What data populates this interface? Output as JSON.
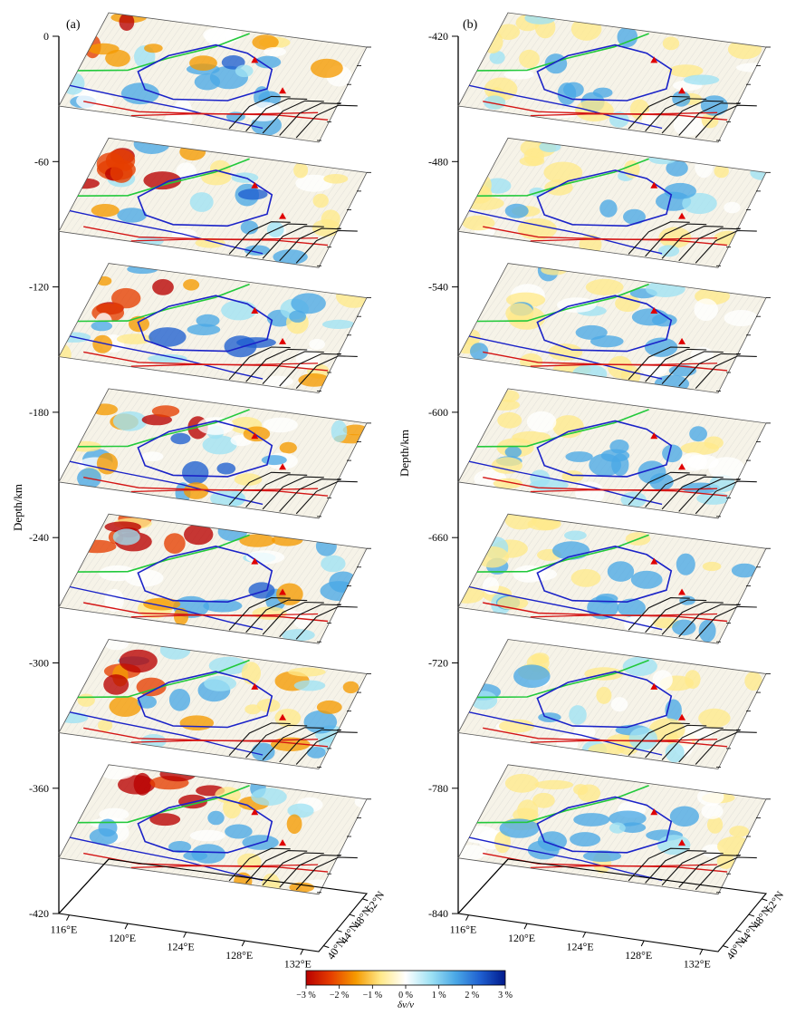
{
  "panels": [
    {
      "label": "(a)",
      "ylabel": "Depth/km",
      "depth_ticks": [
        "0",
        "-60",
        "-120",
        "-180",
        "-240",
        "-300",
        "-360",
        "-420"
      ]
    },
    {
      "label": "(b)",
      "ylabel": "Depth/km",
      "depth_ticks": [
        "-420",
        "-480",
        "-540",
        "-600",
        "-660",
        "-720",
        "-780",
        "-840"
      ]
    }
  ],
  "lon_ticks": [
    "116°E",
    "120°E",
    "124°E",
    "128°E",
    "132°E"
  ],
  "lat_ticks": [
    "40°N",
    "44°N",
    "48°N",
    "52°N"
  ],
  "colorbar": {
    "ticks": [
      "−3 %",
      "−2 %",
      "−1 %",
      "0 %",
      "1 %",
      "2 %",
      "3 %"
    ],
    "label": "δv/v",
    "range": [
      -3,
      3
    ],
    "colors": [
      "#b80000",
      "#e63e00",
      "#f59a00",
      "#ffe98a",
      "#ffffff",
      "#9fe2f4",
      "#4aa8e6",
      "#1f5fd0",
      "#001a8c"
    ]
  },
  "line_colors": {
    "green_fault": "#22c93b",
    "blue_contour": "#1a22c8",
    "red_fault": "#d41414",
    "black_contours": "#111111",
    "red_markers": "#e00000"
  }
}
